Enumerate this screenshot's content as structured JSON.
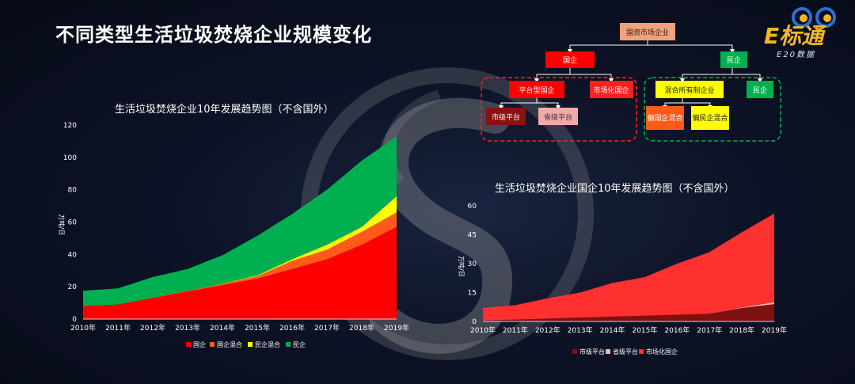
{
  "page": {
    "title": "不同类型生活垃圾焚烧企业规模变化"
  },
  "logo": {
    "main": "E标通",
    "sub": "E20数据"
  },
  "colors": {
    "guoqi": "#ff0000",
    "guoqi_mix": "#ff5a1a",
    "minqi_mix": "#ffff00",
    "minqi": "#00b050",
    "shijiao": "#7f1010",
    "yingxiao": "#f2b2b2",
    "market": "#ff3030"
  },
  "chart_data": [
    {
      "type": "area",
      "stacked": true,
      "title": "生活垃圾焚烧企业10年发展趋势图（不含国外）",
      "ylabel": "万吨/日",
      "x": [
        "2010年",
        "2011年",
        "2012年",
        "2013年",
        "2014年",
        "2015年",
        "2016年",
        "2017年",
        "2018年",
        "2019年"
      ],
      "ylim": [
        0,
        120
      ],
      "yticks": [
        "0",
        "20",
        "40",
        "60",
        "80",
        "100",
        "120"
      ],
      "legend_position": "bottom",
      "series": [
        {
          "name": "国企",
          "values": [
            8,
            9,
            13,
            17,
            21,
            25,
            31,
            37,
            46,
            57
          ]
        },
        {
          "name": "国企混合",
          "values": [
            0,
            0,
            0.3,
            0.5,
            0.8,
            1.5,
            5,
            6,
            8,
            9
          ]
        },
        {
          "name": "民企混合",
          "values": [
            0,
            0,
            0,
            0,
            0.2,
            0.5,
            1,
            3,
            3,
            10
          ]
        },
        {
          "name": "民企",
          "values": [
            9.5,
            10,
            12.7,
            13.5,
            17.5,
            24.5,
            28,
            34,
            41,
            37
          ]
        }
      ]
    },
    {
      "type": "area",
      "stacked": true,
      "title": "生活垃圾焚烧企业国企10年发展趋势图（不含国外）",
      "ylabel": "万吨/日",
      "x": [
        "2010年",
        "2011年",
        "2012年",
        "2013年",
        "2014年",
        "2015年",
        "2016年",
        "2017年",
        "2018年",
        "2019年"
      ],
      "ylim": [
        0,
        60
      ],
      "yticks": [
        "0",
        "15",
        "30",
        "45",
        "60"
      ],
      "legend_position": "bottom",
      "series": [
        {
          "name": "市级平台",
          "values": [
            0.5,
            1,
            1.5,
            2,
            2.5,
            3,
            3.5,
            4,
            7,
            9
          ]
        },
        {
          "name": "省级平台",
          "values": [
            0,
            0,
            0,
            0,
            0,
            0,
            0,
            0,
            0.3,
            1
          ]
        },
        {
          "name": "市场化国企",
          "values": [
            6.5,
            7.5,
            10.5,
            13,
            17.5,
            20,
            26.5,
            32,
            39,
            46
          ]
        }
      ]
    }
  ],
  "org": {
    "root": "国资市场企业",
    "guoqi": "国企",
    "minqi": "民企",
    "platform": "平台型国企",
    "market": "市场化国企",
    "mixed": "混合所有制企业",
    "minqi_leaf": "民企",
    "city_platform": "市级平台",
    "province_platform": "省级平台",
    "guoqi_mix": "偏国企混合",
    "minqi_mix": "偏民企混合"
  }
}
